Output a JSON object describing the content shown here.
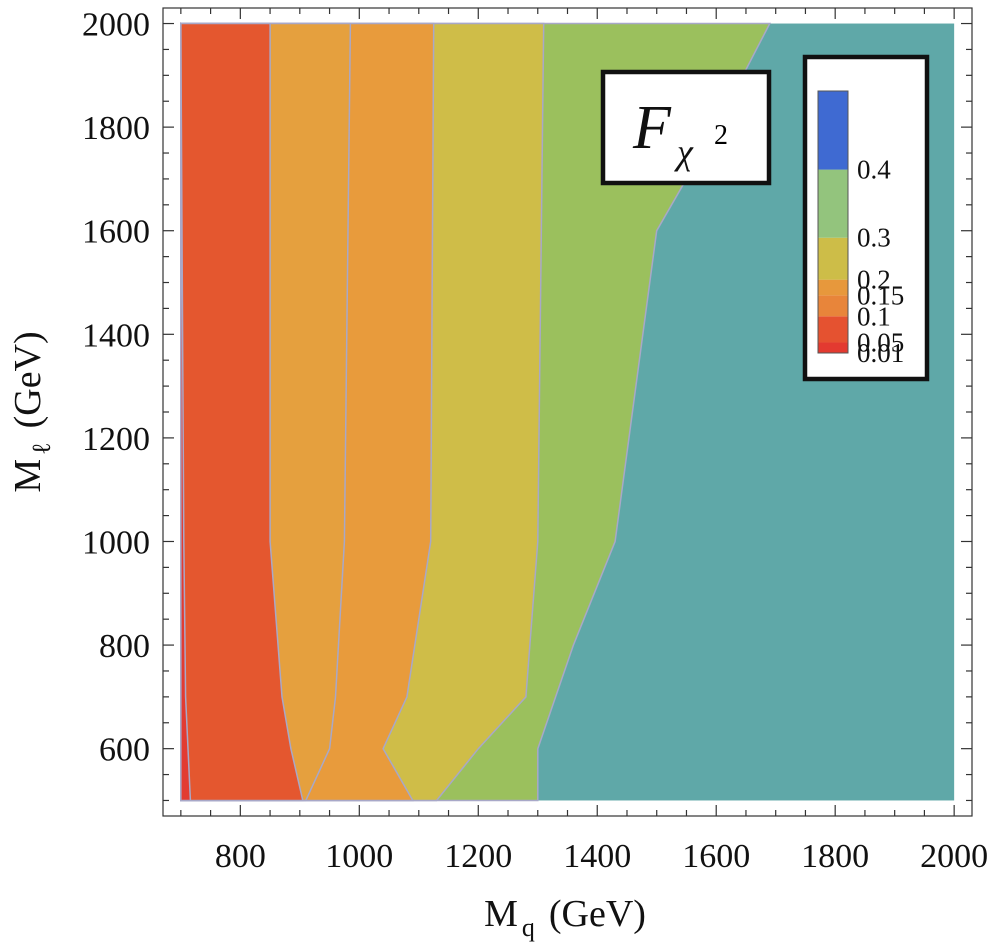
{
  "chart_data": {
    "type": "contour",
    "xlabel": {
      "main": "M",
      "sub": "q",
      "unit": "(GeV)"
    },
    "ylabel": {
      "main": "M",
      "sub": "ℓ",
      "unit": "(GeV)"
    },
    "xlim": [
      670,
      2030
    ],
    "ylim": [
      470,
      2030
    ],
    "data_x_range": [
      700,
      2000
    ],
    "data_y_range": [
      500,
      2000
    ],
    "x_ticks": [
      "800",
      "1000",
      "1200",
      "1400",
      "1600",
      "1800",
      "2000"
    ],
    "y_ticks": [
      "600",
      "800",
      "1000",
      "1200",
      "1400",
      "1600",
      "1800",
      "2000"
    ],
    "inset_label": {
      "script": "F",
      "sub": "χ",
      "sup": "2"
    },
    "legend": {
      "labels": [
        "0.4",
        "0.3",
        "0.2",
        "0.15",
        "0.1",
        "0.05",
        "0.01"
      ],
      "levels": [
        0.01,
        0.05,
        0.1,
        0.15,
        0.2,
        0.3,
        0.4
      ],
      "colors": [
        "#e33a30",
        "#e55230",
        "#e8853a",
        "#e7983c",
        "#cdbd48",
        "#93c47d",
        "#3f6ad2"
      ],
      "sizes": [
        0.04,
        0.1,
        0.08,
        0.06,
        0.16,
        0.26,
        0.3
      ]
    },
    "background_color": "#5fa8a8",
    "regions": [
      {
        "level": ">0.3",
        "color": "#5fa8a8",
        "boundary_low": []
      },
      {
        "level": "0.2–0.3",
        "color": "#9bc05d",
        "boundary_low": [
          [
            2000,
            1690
          ],
          [
            1800,
            1600
          ],
          [
            1600,
            1500
          ],
          [
            1000,
            1430
          ],
          [
            800,
            1360
          ],
          [
            700,
            1330
          ],
          [
            600,
            1300
          ],
          [
            500,
            1300
          ]
        ]
      },
      {
        "level": "0.15–0.2",
        "color": "#cfbd48",
        "boundary_low": [
          [
            2000,
            1310
          ],
          [
            1000,
            1300
          ],
          [
            700,
            1280
          ],
          [
            600,
            1200
          ],
          [
            500,
            1130
          ]
        ]
      },
      {
        "level": "0.1–0.15",
        "color": "#e89b3c",
        "boundary_low": [
          [
            2000,
            1125
          ],
          [
            1000,
            1120
          ],
          [
            700,
            1080
          ],
          [
            600,
            1040
          ],
          [
            500,
            1090
          ]
        ]
      },
      {
        "level": "0.05–0.1",
        "color": "#e5a03e",
        "boundary_low": [
          [
            2000,
            985
          ],
          [
            1000,
            975
          ],
          [
            700,
            960
          ],
          [
            600,
            950
          ],
          [
            500,
            910
          ]
        ]
      },
      {
        "level": "0.01–0.05",
        "color": "#e4572f",
        "boundary_low": [
          [
            2000,
            850
          ],
          [
            1000,
            850
          ],
          [
            700,
            870
          ],
          [
            600,
            885
          ],
          [
            500,
            905
          ]
        ]
      },
      {
        "level": "<0.01",
        "color": "#e23b32",
        "boundary_low": [
          [
            2000,
            700
          ],
          [
            1000,
            705
          ],
          [
            700,
            708
          ],
          [
            600,
            712
          ],
          [
            500,
            716
          ]
        ]
      }
    ]
  }
}
